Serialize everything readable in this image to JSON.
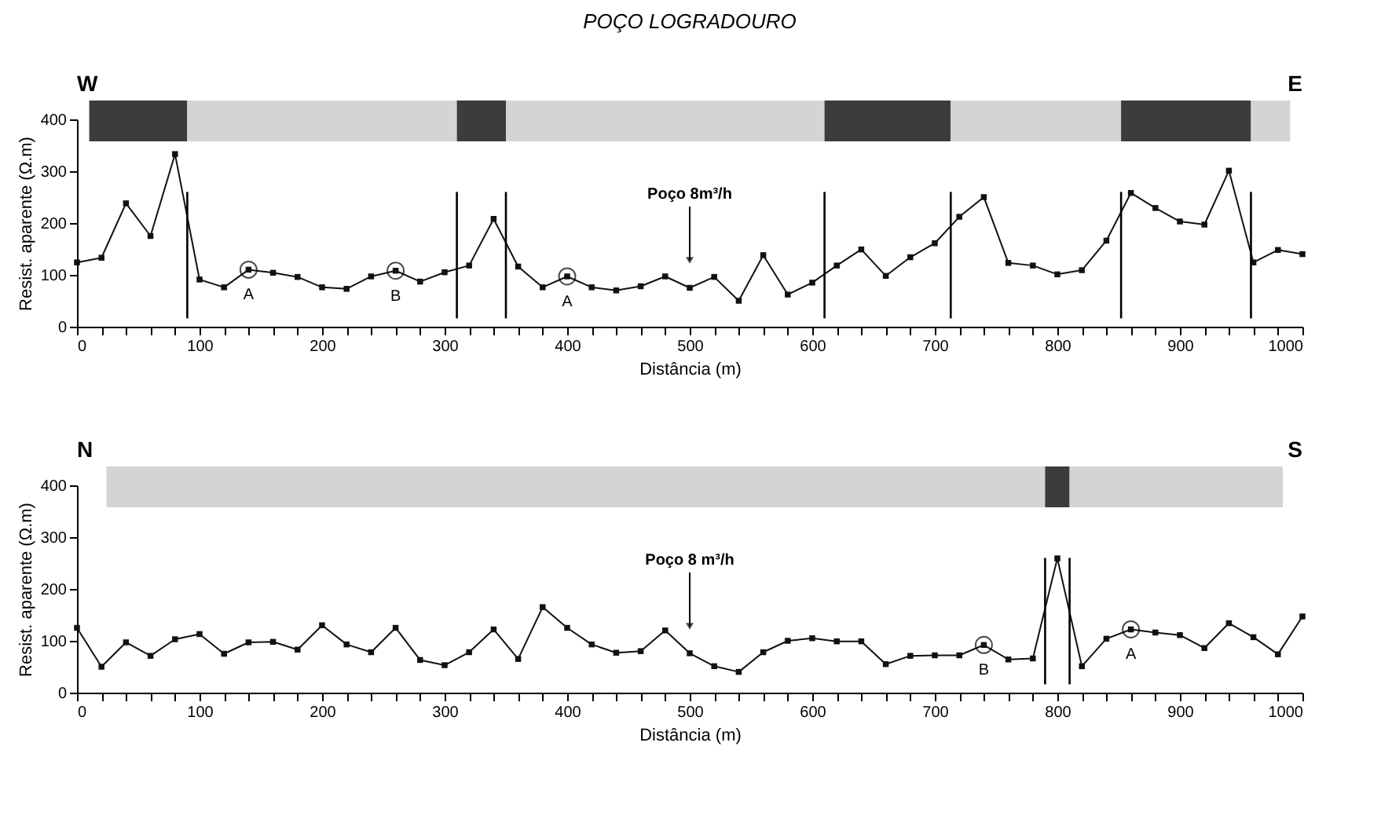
{
  "chart_data": [
    {
      "type": "line",
      "title": "POÇO LOGRADOURO",
      "xlabel": "Distância (m)",
      "ylabel": "Resist. aparente (Ω.m)",
      "x": [
        0,
        20,
        40,
        60,
        80,
        100,
        120,
        140,
        160,
        180,
        200,
        220,
        240,
        260,
        280,
        300,
        320,
        340,
        360,
        380,
        400,
        420,
        440,
        460,
        480,
        500,
        520,
        540,
        560,
        580,
        600,
        620,
        640,
        660,
        680,
        700,
        720,
        740,
        760,
        780,
        800,
        820,
        840,
        860,
        880,
        900,
        920,
        940,
        960,
        980,
        1000
      ],
      "values": [
        124,
        133,
        238,
        175,
        333,
        91,
        76,
        110,
        104,
        96,
        76,
        73,
        97,
        108,
        87,
        105,
        118,
        208,
        116,
        76,
        97,
        76,
        70,
        78,
        97,
        75,
        96,
        50,
        138,
        62,
        85,
        118,
        149,
        98,
        134,
        161,
        212,
        250,
        123,
        118,
        101,
        109,
        166,
        258,
        229,
        203,
        197,
        301,
        124,
        148,
        140
      ],
      "color": "#111111",
      "marker": "square",
      "line_style": "solid",
      "grid": false,
      "xlim": [
        0,
        1000
      ],
      "ylim": [
        0,
        400
      ],
      "yticks": [
        0,
        100,
        200,
        300,
        400
      ],
      "xticks": [
        0,
        {
          "value": 20,
          "label": null
        },
        {
          "value": 40,
          "label": null
        },
        {
          "value": 60,
          "label": null
        },
        {
          "value": 80,
          "label": null
        },
        100,
        {
          "value": 120,
          "label": null
        },
        {
          "value": 140,
          "label": null
        },
        {
          "value": 160,
          "label": null
        },
        {
          "value": 180,
          "label": null
        },
        200,
        {
          "value": 220,
          "label": null
        },
        {
          "value": 240,
          "label": null
        },
        {
          "value": 260,
          "label": null
        },
        {
          "value": 280,
          "label": null
        },
        300,
        {
          "value": 320,
          "label": null
        },
        {
          "value": 340,
          "label": null
        },
        {
          "value": 360,
          "label": null
        },
        {
          "value": 380,
          "label": null
        },
        400,
        {
          "value": 420,
          "label": null
        },
        {
          "value": 440,
          "label": null
        },
        {
          "value": 460,
          "label": null
        },
        {
          "value": 480,
          "label": null
        },
        500,
        {
          "value": 520,
          "label": null
        },
        {
          "value": 540,
          "label": null
        },
        {
          "value": 560,
          "label": null
        },
        {
          "value": 580,
          "label": null
        },
        600,
        {
          "value": 620,
          "label": null
        },
        {
          "value": 640,
          "label": null
        },
        {
          "value": 660,
          "label": null
        },
        {
          "value": 680,
          "label": null
        },
        700,
        {
          "value": 720,
          "label": null
        },
        {
          "value": 740,
          "label": null
        },
        {
          "value": 760,
          "label": null
        },
        {
          "value": 780,
          "label": null
        },
        800,
        {
          "value": 820,
          "label": null
        },
        {
          "value": 840,
          "label": null
        },
        {
          "value": 860,
          "label": null
        },
        {
          "value": 880,
          "label": null
        },
        900,
        {
          "value": 920,
          "label": null
        },
        {
          "value": 940,
          "label": null
        },
        {
          "value": 960,
          "label": null
        },
        {
          "value": 980,
          "label": null
        },
        1000
      ],
      "ref_lines": [
        {
          "axis": "x",
          "value": 90
        },
        {
          "axis": "x",
          "value": 310
        },
        {
          "axis": "x",
          "value": 350
        },
        {
          "axis": "x",
          "value": 610
        },
        {
          "axis": "x",
          "value": 713
        },
        {
          "axis": "x",
          "value": 852
        },
        {
          "axis": "x",
          "value": 958
        }
      ],
      "bands": [
        {
          "axis": "x",
          "from": 10,
          "to": 90,
          "color": "#3c3c3c"
        },
        {
          "axis": "x",
          "from": 90,
          "to": 310,
          "color": "#d4d4d4"
        },
        {
          "axis": "x",
          "from": 310,
          "to": 350,
          "color": "#3c3c3c"
        },
        {
          "axis": "x",
          "from": 350,
          "to": 610,
          "color": "#d4d4d4"
        },
        {
          "axis": "x",
          "from": 610,
          "to": 713,
          "color": "#3c3c3c"
        },
        {
          "axis": "x",
          "from": 713,
          "to": 852,
          "color": "#d4d4d4"
        },
        {
          "axis": "x",
          "from": 852,
          "to": 958,
          "color": "#3c3c3c"
        },
        {
          "axis": "x",
          "from": 958,
          "to": 990,
          "color": "#d4d4d4"
        }
      ],
      "annotations": [
        "W",
        "E",
        "Poço 8m³/h",
        {
          "text": "A",
          "x": 140,
          "y": 110
        },
        {
          "text": "B",
          "x": 260,
          "y": 108
        },
        {
          "text": "A",
          "x": 400,
          "y": 97
        }
      ]
    },
    {
      "type": "line",
      "xlabel": "Distância (m)",
      "ylabel": "Resist. aparente (Ω.m)",
      "x": [
        0,
        20,
        40,
        60,
        80,
        100,
        120,
        140,
        160,
        180,
        200,
        220,
        240,
        260,
        280,
        300,
        320,
        340,
        360,
        380,
        400,
        420,
        440,
        460,
        480,
        500,
        520,
        540,
        560,
        580,
        600,
        620,
        640,
        660,
        680,
        700,
        720,
        740,
        760,
        780,
        800,
        820,
        840,
        860,
        880,
        900,
        920,
        940,
        960,
        980,
        1000
      ],
      "values": [
        125,
        50,
        97,
        71,
        103,
        113,
        75,
        97,
        98,
        83,
        130,
        93,
        78,
        125,
        63,
        53,
        78,
        122,
        65,
        165,
        125,
        93,
        77,
        80,
        120,
        76,
        51,
        40,
        78,
        100,
        105,
        99,
        99,
        55,
        71,
        72,
        72,
        92,
        64,
        66,
        259,
        51,
        104,
        122,
        116,
        111,
        86,
        134,
        107,
        74,
        147
      ],
      "color": "#111111",
      "marker": "square",
      "line_style": "solid",
      "grid": false,
      "xlim": [
        0,
        1000
      ],
      "ylim": [
        0,
        400
      ],
      "yticks": [
        0,
        100,
        200,
        300,
        400
      ],
      "xticks": [
        0,
        {
          "value": 20,
          "label": null
        },
        {
          "value": 40,
          "label": null
        },
        {
          "value": 60,
          "label": null
        },
        {
          "value": 80,
          "label": null
        },
        100,
        {
          "value": 120,
          "label": null
        },
        {
          "value": 140,
          "label": null
        },
        {
          "value": 160,
          "label": null
        },
        {
          "value": 180,
          "label": null
        },
        200,
        {
          "value": 220,
          "label": null
        },
        {
          "value": 240,
          "label": null
        },
        {
          "value": 260,
          "label": null
        },
        {
          "value": 280,
          "label": null
        },
        300,
        {
          "value": 320,
          "label": null
        },
        {
          "value": 340,
          "label": null
        },
        {
          "value": 360,
          "label": null
        },
        {
          "value": 380,
          "label": null
        },
        400,
        {
          "value": 420,
          "label": null
        },
        {
          "value": 440,
          "label": null
        },
        {
          "value": 460,
          "label": null
        },
        {
          "value": 480,
          "label": null
        },
        500,
        {
          "value": 520,
          "label": null
        },
        {
          "value": 540,
          "label": null
        },
        {
          "value": 560,
          "label": null
        },
        {
          "value": 580,
          "label": null
        },
        600,
        {
          "value": 620,
          "label": null
        },
        {
          "value": 640,
          "label": null
        },
        {
          "value": 660,
          "label": null
        },
        {
          "value": 680,
          "label": null
        },
        700,
        {
          "value": 720,
          "label": null
        },
        {
          "value": 740,
          "label": null
        },
        {
          "value": 760,
          "label": null
        },
        {
          "value": 780,
          "label": null
        },
        800,
        {
          "value": 820,
          "label": null
        },
        {
          "value": 840,
          "label": null
        },
        {
          "value": 860,
          "label": null
        },
        {
          "value": 880,
          "label": null
        },
        900,
        {
          "value": 920,
          "label": null
        },
        {
          "value": 940,
          "label": null
        },
        {
          "value": 960,
          "label": null
        },
        {
          "value": 980,
          "label": null
        },
        1000
      ],
      "ref_lines": [
        {
          "axis": "x",
          "value": 790
        },
        {
          "axis": "x",
          "value": 810
        }
      ],
      "bands": [
        {
          "axis": "x",
          "from": 24,
          "to": 790,
          "color": "#d4d4d4"
        },
        {
          "axis": "x",
          "from": 790,
          "to": 810,
          "color": "#3c3c3c"
        },
        {
          "axis": "x",
          "from": 810,
          "to": 984,
          "color": "#d4d4d4"
        }
      ],
      "annotations": [
        "N",
        "S",
        "Poço 8 m³/h",
        {
          "text": "B",
          "x": 740,
          "y": 92
        },
        {
          "text": "A",
          "x": 860,
          "y": 122
        }
      ]
    }
  ]
}
